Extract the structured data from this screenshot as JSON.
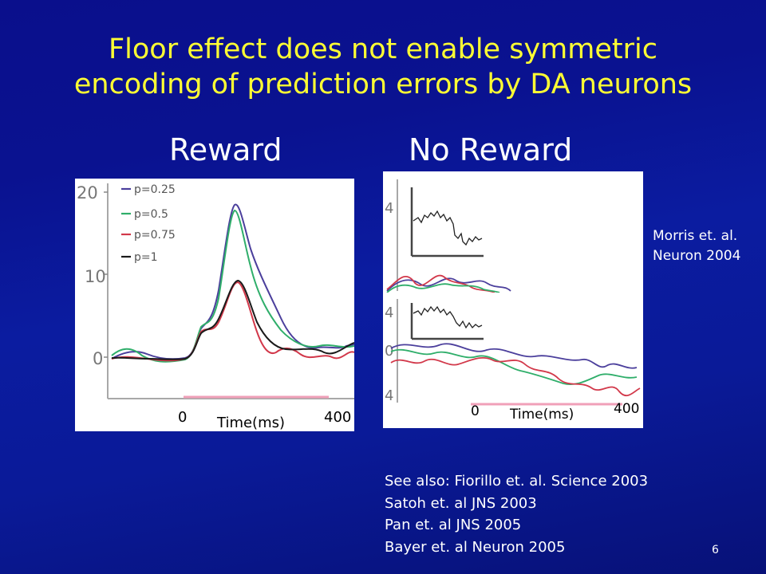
{
  "slide": {
    "title_line1": "Floor effect does not enable symmetric",
    "title_line2": "encoding of prediction errors by DA neurons",
    "label_reward": "Reward",
    "label_noreward": "No Reward",
    "citation_line1": "Morris et. al.",
    "citation_line2": "Neuron 2004",
    "see_also": [
      "See also: Fiorillo  et. al. Science 2003",
      "Satoh et. al JNS 2003",
      "Pan et. al JNS 2005",
      "Bayer et. al Neuron 2005"
    ],
    "page_number": "6",
    "colors": {
      "title": "#ffff33",
      "background": "#0b1ca0",
      "p025": "#4b3f9c",
      "p05": "#2fae6a",
      "p075": "#d2384a",
      "p1": "#1a1a1a"
    }
  },
  "chart_data": [
    {
      "type": "line",
      "panel": "Reward",
      "y_ticks": [
        "20",
        "10",
        "0"
      ],
      "ylim": [
        -5,
        22
      ],
      "x_ticks": [
        "0",
        "400"
      ],
      "xlabel": "Time(ms)",
      "series": [
        {
          "name": "p=0.25",
          "color": "#4b3f9c"
        },
        {
          "name": "p=0.5",
          "color": "#2fae6a"
        },
        {
          "name": "p=0.75",
          "color": "#d2384a"
        },
        {
          "name": "p=1",
          "color": "#1a1a1a"
        }
      ],
      "peaks": {
        "p=0.25": 19.5,
        "p=0.5": 18.5,
        "p=0.75": 9.3,
        "p=1": 9.3
      }
    },
    {
      "type": "line",
      "panel": "No Reward",
      "y_ticks_top": [
        "4"
      ],
      "y_ticks_bottom": [
        "4",
        "0",
        "4"
      ],
      "x_ticks": [
        "0",
        "400"
      ],
      "xlabel": "Time(ms)"
    }
  ]
}
